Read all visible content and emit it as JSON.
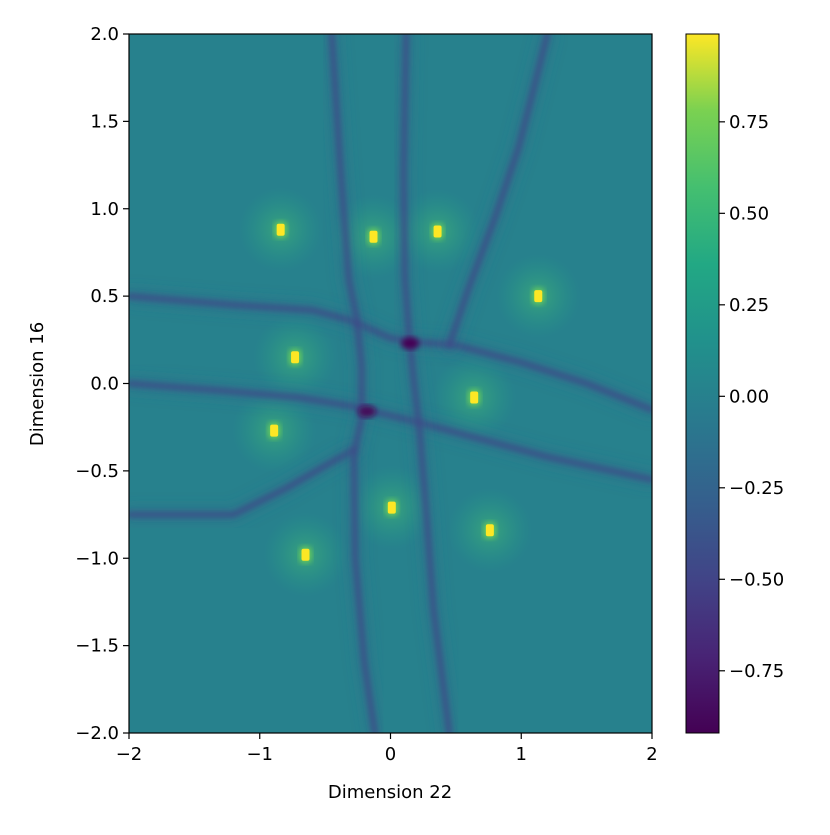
{
  "chart_data": {
    "type": "heatmap",
    "title": "",
    "xlabel": "Dimension 22",
    "ylabel": "Dimension 16",
    "xlim": [
      -2,
      2
    ],
    "ylim": [
      -2,
      2
    ],
    "xticks": [
      -2,
      -1,
      0,
      1,
      2
    ],
    "xtick_labels": [
      "−2",
      "−1",
      "0",
      "1",
      "2"
    ],
    "yticks": [
      -2.0,
      -1.5,
      -1.0,
      -0.5,
      0.0,
      0.5,
      1.0,
      1.5,
      2.0
    ],
    "ytick_labels": [
      "−2.0",
      "−1.5",
      "−1.0",
      "−0.5",
      "0.0",
      "0.5",
      "1.0",
      "1.5",
      "2.0"
    ],
    "colormap": "viridis",
    "colorbar": {
      "range": [
        -0.92,
        0.99
      ],
      "ticks": [
        0.75,
        0.5,
        0.25,
        0.0,
        -0.25,
        -0.5,
        -0.75
      ],
      "tick_labels": [
        "0.75",
        "0.50",
        "0.25",
        "0.00",
        "−0.25",
        "−0.50",
        "−0.75"
      ]
    },
    "background_value": 0.0,
    "grid": false,
    "hotspots": [
      {
        "x": -0.84,
        "y": 0.88,
        "value": 0.99
      },
      {
        "x": -0.13,
        "y": 0.84,
        "value": 0.99
      },
      {
        "x": 0.36,
        "y": 0.87,
        "value": 0.99
      },
      {
        "x": 1.13,
        "y": 0.5,
        "value": 0.99
      },
      {
        "x": -0.73,
        "y": 0.15,
        "value": 0.99
      },
      {
        "x": 0.64,
        "y": -0.08,
        "value": 0.99
      },
      {
        "x": -0.89,
        "y": -0.27,
        "value": 0.99
      },
      {
        "x": 0.01,
        "y": -0.71,
        "value": 0.99
      },
      {
        "x": 0.76,
        "y": -0.84,
        "value": 0.99
      },
      {
        "x": -0.65,
        "y": -0.98,
        "value": 0.99
      }
    ],
    "ridges": [
      {
        "value": -0.5,
        "points": [
          [
            -2.0,
            0.5
          ],
          [
            -1.2,
            0.45
          ],
          [
            -0.6,
            0.42
          ],
          [
            -0.3,
            0.36
          ],
          [
            0.0,
            0.26
          ],
          [
            0.15,
            0.24
          ],
          [
            0.5,
            0.22
          ],
          [
            1.0,
            0.12
          ],
          [
            1.5,
            0.0
          ],
          [
            2.0,
            -0.15
          ]
        ]
      },
      {
        "value": -0.5,
        "points": [
          [
            -2.0,
            0.0
          ],
          [
            -1.3,
            -0.04
          ],
          [
            -0.7,
            -0.08
          ],
          [
            -0.3,
            -0.13
          ],
          [
            0.2,
            -0.22
          ],
          [
            0.6,
            -0.3
          ],
          [
            1.2,
            -0.42
          ],
          [
            2.0,
            -0.55
          ]
        ]
      },
      {
        "value": -0.5,
        "points": [
          [
            -2.0,
            -0.75
          ],
          [
            -1.2,
            -0.75
          ],
          [
            -0.8,
            -0.6
          ],
          [
            -0.45,
            -0.45
          ],
          [
            -0.28,
            -0.38
          ]
        ]
      },
      {
        "value": -0.5,
        "points": [
          [
            -0.45,
            2.0
          ],
          [
            -0.38,
            1.2
          ],
          [
            -0.32,
            0.6
          ],
          [
            -0.26,
            0.38
          ],
          [
            -0.22,
            0.1
          ],
          [
            -0.22,
            -0.2
          ],
          [
            -0.28,
            -0.4
          ],
          [
            -0.27,
            -1.0
          ],
          [
            -0.2,
            -1.6
          ],
          [
            -0.12,
            -2.0
          ]
        ]
      },
      {
        "value": -0.5,
        "points": [
          [
            0.12,
            2.0
          ],
          [
            0.1,
            1.2
          ],
          [
            0.11,
            0.6
          ],
          [
            0.14,
            0.3
          ],
          [
            0.18,
            0.0
          ],
          [
            0.22,
            -0.25
          ],
          [
            0.27,
            -0.7
          ],
          [
            0.33,
            -1.3
          ],
          [
            0.45,
            -2.0
          ]
        ]
      },
      {
        "value": -0.5,
        "points": [
          [
            0.45,
            0.22
          ],
          [
            0.6,
            0.55
          ],
          [
            0.8,
            0.95
          ],
          [
            0.98,
            1.35
          ],
          [
            1.1,
            1.7
          ],
          [
            1.2,
            2.0
          ]
        ]
      }
    ],
    "minima": [
      {
        "x": 0.15,
        "y": 0.23,
        "value": -0.92
      },
      {
        "x": -0.18,
        "y": -0.16,
        "value": -0.88
      }
    ]
  }
}
